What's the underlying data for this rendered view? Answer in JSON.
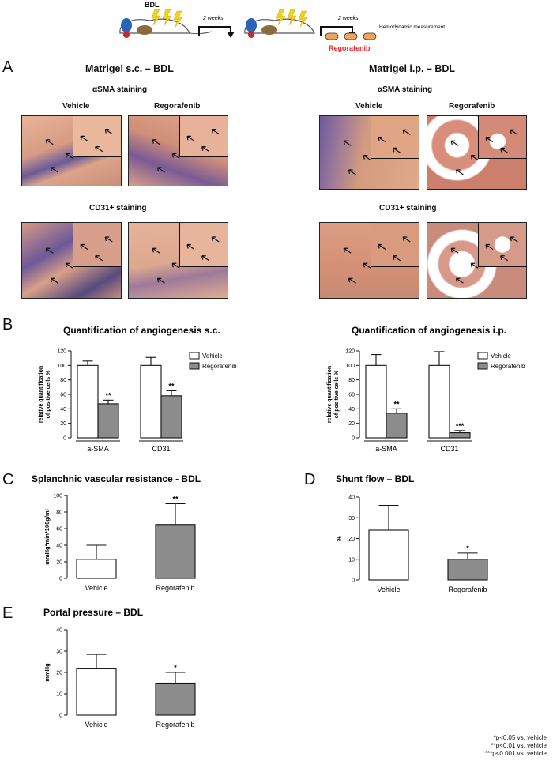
{
  "schematic": {
    "bdl_label": "BDL",
    "step1_label": "2 weeks",
    "step2_label": "2 weeks",
    "drug_label": "Regorafenib",
    "endpoint_label": "Hemodynamic measurement"
  },
  "panel_a": {
    "letter": "A",
    "left_title": "Matrigel s.c. – BDL",
    "right_title": "Matrigel i.p. – BDL",
    "sma_label": "αSMA staining",
    "cd31_label": "CD31+ staining",
    "vehicle_label": "Vehicle",
    "regorafenib_label": "Regorafenib"
  },
  "letters": {
    "b": "B",
    "c": "C",
    "d": "D",
    "e": "E"
  },
  "colors": {
    "vehicle": "#ffffff",
    "regorafenib": "#8c8c8c",
    "stain_pink": "#e8b49a",
    "stain_purple": "#6b5a9c",
    "drug_red": "#e3262a"
  },
  "footnotes": [
    "*p<0.05 vs. vehicle",
    "**p<0.01 vs. vehicle",
    "***p<0.001 vs. vehicle"
  ],
  "chart_data": [
    {
      "id": "b_sc",
      "type": "bar",
      "title": "Quantification of angiogenesis s.c.",
      "ylabel": "relative quantification of positive cells %",
      "ylim": [
        0,
        120
      ],
      "yticks": [
        0,
        20,
        40,
        60,
        80,
        100,
        120
      ],
      "categories": [
        "a-SMA",
        "CD31"
      ],
      "legend": [
        "Vehicle",
        "Regorafenib"
      ],
      "series": [
        {
          "name": "Vehicle",
          "values": [
            100,
            100
          ],
          "errors": [
            6,
            11
          ],
          "sig": [
            "",
            ""
          ]
        },
        {
          "name": "Regorafenib",
          "values": [
            47,
            58
          ],
          "errors": [
            5,
            7
          ],
          "sig": [
            "**",
            "**"
          ]
        }
      ]
    },
    {
      "id": "b_ip",
      "type": "bar",
      "title": "Quantification of angiogenesis i.p.",
      "ylabel": "relative quantification of positive cells %",
      "ylim": [
        0,
        120
      ],
      "yticks": [
        0,
        20,
        40,
        60,
        80,
        100,
        120
      ],
      "categories": [
        "a-SMA",
        "CD31"
      ],
      "legend": [
        "Vehicle",
        "Regorafenib"
      ],
      "series": [
        {
          "name": "Vehicle",
          "values": [
            100,
            100
          ],
          "errors": [
            15,
            19
          ],
          "sig": [
            "",
            ""
          ]
        },
        {
          "name": "Regorafenib",
          "values": [
            34,
            7
          ],
          "errors": [
            6,
            3
          ],
          "sig": [
            "**",
            "***"
          ]
        }
      ]
    },
    {
      "id": "c",
      "type": "bar",
      "title": "Splanchnic vascular resistance - BDL",
      "ylabel": "mmHg*min*100g/ml",
      "ylim": [
        0,
        100
      ],
      "yticks": [
        0,
        20,
        40,
        60,
        80,
        100
      ],
      "categories": [
        "Vehicle",
        "Regorafenib"
      ],
      "values": [
        23,
        65
      ],
      "errors": [
        17,
        25
      ],
      "sig": [
        "",
        "**"
      ]
    },
    {
      "id": "d",
      "type": "bar",
      "title": "Shunt flow – BDL",
      "ylabel": "%",
      "ylim": [
        0,
        40
      ],
      "yticks": [
        0,
        10,
        20,
        30,
        40
      ],
      "categories": [
        "Vehicle",
        "Regorafenib"
      ],
      "values": [
        24,
        10
      ],
      "errors": [
        12,
        3
      ],
      "sig": [
        "",
        "*"
      ]
    },
    {
      "id": "e",
      "type": "bar",
      "title": "Portal pressure – BDL",
      "ylabel": "mmHg",
      "ylim": [
        0,
        40
      ],
      "yticks": [
        0,
        10,
        20,
        30,
        40
      ],
      "categories": [
        "Vehicle",
        "Regorafenib"
      ],
      "values": [
        22,
        15
      ],
      "errors": [
        6.5,
        5
      ],
      "sig": [
        "",
        "*"
      ]
    }
  ]
}
